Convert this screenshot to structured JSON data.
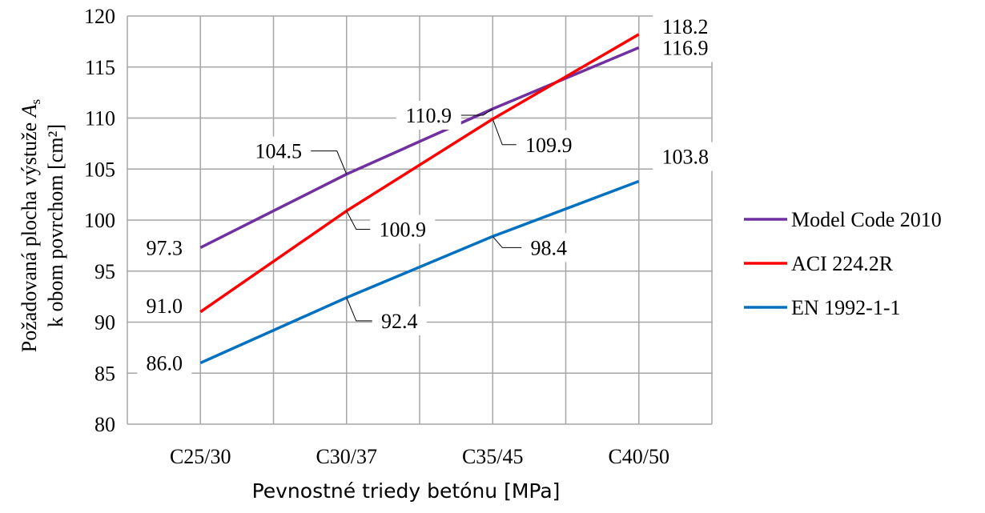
{
  "chart_data": {
    "type": "line",
    "title": "",
    "categories": [
      "C25/30",
      "C30/37",
      "C35/45",
      "C40/50"
    ],
    "series": [
      {
        "name": "Model Code 2010",
        "color": "#7030a0",
        "values": [
          97.3,
          104.5,
          110.9,
          116.9
        ],
        "labels": [
          "97.3",
          "104.5",
          "110.9",
          "116.9"
        ]
      },
      {
        "name": "ACI 224.2R",
        "color": "#ff0000",
        "values": [
          91.0,
          100.9,
          109.9,
          118.2
        ],
        "labels": [
          "91.0",
          "100.9",
          "109.9",
          "118.2"
        ]
      },
      {
        "name": "EN 1992-1-1",
        "color": "#0070c0",
        "values": [
          86.0,
          92.4,
          98.4,
          103.8
        ],
        "labels": [
          "86.0",
          "92.4",
          "98.4",
          "103.8"
        ]
      }
    ],
    "ylim": [
      80,
      120
    ],
    "yticks": [
      "80",
      "85",
      "90",
      "95",
      "100",
      "105",
      "110",
      "115",
      "120"
    ],
    "xlabel": "Pevnostné triedy betónu [MPa]",
    "ylabel_line1": "Požadovaná plocha výstuže",
    "ylabel_symbol": "A",
    "ylabel_subscript": "s",
    "ylabel_line2": "k obom povrchom [cm²]",
    "grid": true,
    "legend_position": "right"
  }
}
